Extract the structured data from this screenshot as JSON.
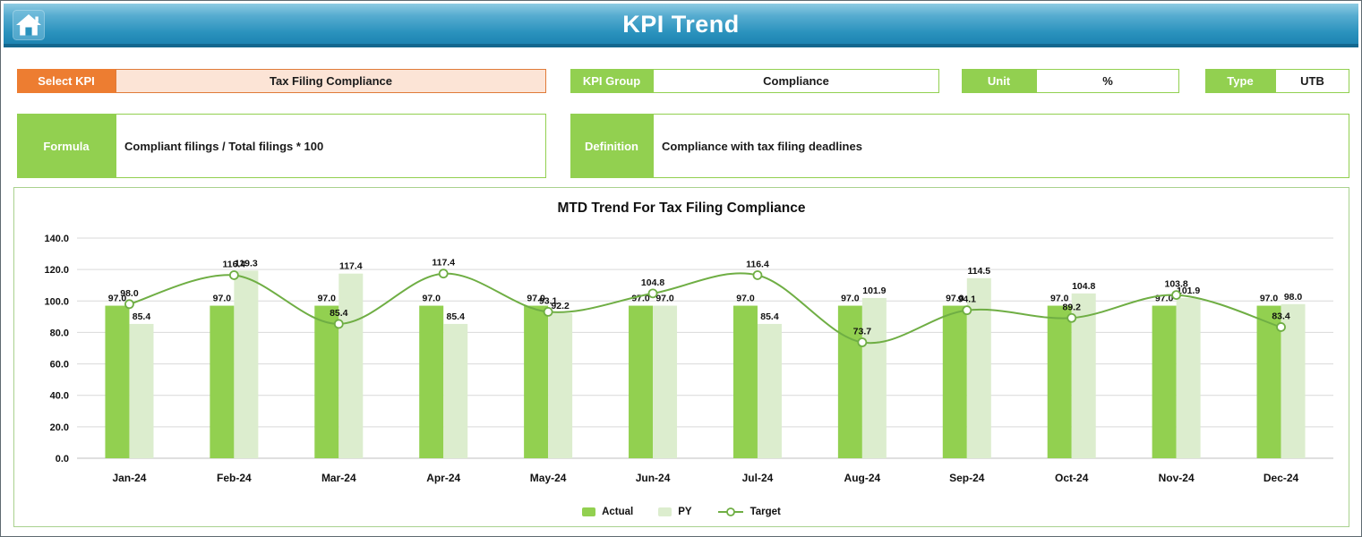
{
  "header": {
    "title": "KPI Trend"
  },
  "controls": {
    "select_kpi": {
      "label": "Select KPI",
      "value": "Tax Filing Compliance"
    },
    "kpi_group": {
      "label": "KPI Group",
      "value": "Compliance"
    },
    "unit": {
      "label": "Unit",
      "value": "%"
    },
    "type": {
      "label": "Type",
      "value": "UTB"
    },
    "formula": {
      "label": "Formula",
      "value": "Compliant filings / Total filings * 100"
    },
    "definition": {
      "label": "Definition",
      "value": "Compliance with tax filing deadlines"
    }
  },
  "colors": {
    "header_gradient_top": "#8FCBE3",
    "header_gradient_bottom": "#1E84B2",
    "accent_orange": "#ED7D31",
    "orange_fill": "#FCE4D6",
    "accent_green": "#92D050",
    "bar_actual": "#92D050",
    "bar_py": "#DCEDCE",
    "target_line": "#6FAE44",
    "chart_border": "#A9D18E"
  },
  "chart_data": {
    "type": "bar",
    "title": "MTD Trend For Tax Filing Compliance",
    "categories": [
      "Jan-24",
      "Feb-24",
      "Mar-24",
      "Apr-24",
      "May-24",
      "Jun-24",
      "Jul-24",
      "Aug-24",
      "Sep-24",
      "Oct-24",
      "Nov-24",
      "Dec-24"
    ],
    "series": [
      {
        "name": "Actual",
        "type": "bar",
        "color": "#92D050",
        "values": [
          97.0,
          97.0,
          97.0,
          97.0,
          97.0,
          97.0,
          97.0,
          97.0,
          97.0,
          97.0,
          97.0,
          97.0
        ]
      },
      {
        "name": "PY",
        "type": "bar",
        "color": "#DCEDCE",
        "values": [
          85.4,
          119.3,
          117.4,
          85.4,
          92.2,
          97.0,
          85.4,
          101.9,
          114.5,
          104.8,
          101.9,
          98.0
        ]
      },
      {
        "name": "Target",
        "type": "line",
        "color": "#6FAE44",
        "values": [
          98.0,
          116.4,
          85.4,
          117.4,
          93.1,
          104.8,
          116.4,
          73.7,
          94.1,
          89.2,
          103.8,
          83.4
        ]
      }
    ],
    "ylim": [
      0,
      140
    ],
    "ytick_step": 20,
    "value_format": "0.0",
    "grid": true,
    "legend_position": "bottom"
  }
}
